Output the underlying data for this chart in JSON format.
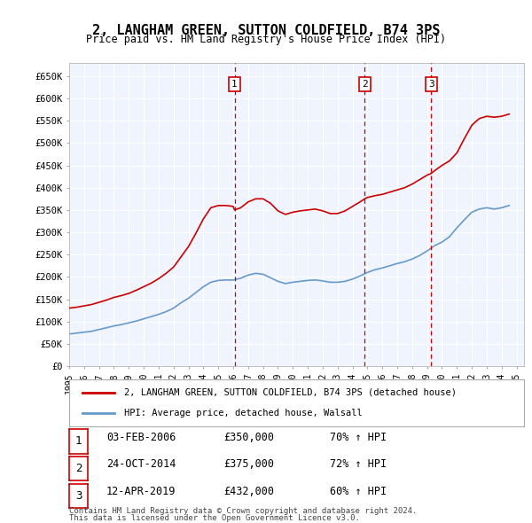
{
  "title": "2, LANGHAM GREEN, SUTTON COLDFIELD, B74 3PS",
  "subtitle": "Price paid vs. HM Land Registry's House Price Index (HPI)",
  "ylabel_ticks": [
    "£0",
    "£50K",
    "£100K",
    "£150K",
    "£200K",
    "£250K",
    "£300K",
    "£350K",
    "£400K",
    "£450K",
    "£500K",
    "£550K",
    "£600K",
    "£650K"
  ],
  "ytick_values": [
    0,
    50000,
    100000,
    150000,
    200000,
    250000,
    300000,
    350000,
    400000,
    450000,
    500000,
    550000,
    600000,
    650000
  ],
  "ylim": [
    0,
    680000
  ],
  "xlim_start": 1995.0,
  "xlim_end": 2025.5,
  "background_color": "#ffffff",
  "plot_background_color": "#f0f4ff",
  "grid_color": "#ffffff",
  "sale_dates": [
    2006.09,
    2014.82,
    2019.28
  ],
  "sale_labels": [
    "1",
    "2",
    "3"
  ],
  "sale_prices": [
    350000,
    375000,
    432000
  ],
  "sale_date_strs": [
    "03-FEB-2006",
    "24-OCT-2014",
    "12-APR-2019"
  ],
  "sale_price_strs": [
    "£350,000",
    "£375,000",
    "£432,000"
  ],
  "sale_hpi_strs": [
    "70% ↑ HPI",
    "72% ↑ HPI",
    "60% ↑ HPI"
  ],
  "legend_label_red": "2, LANGHAM GREEN, SUTTON COLDFIELD, B74 3PS (detached house)",
  "legend_label_blue": "HPI: Average price, detached house, Walsall",
  "footer_line1": "Contains HM Land Registry data © Crown copyright and database right 2024.",
  "footer_line2": "This data is licensed under the Open Government Licence v3.0.",
  "red_line_color": "#cc0000",
  "blue_line_color": "#6699cc",
  "vline_color": "#cc0000",
  "hpi_red_x": [
    1995.0,
    1995.5,
    1996.0,
    1996.5,
    1997.0,
    1997.5,
    1998.0,
    1998.5,
    1999.0,
    1999.5,
    2000.0,
    2000.5,
    2001.0,
    2001.5,
    2002.0,
    2002.5,
    2003.0,
    2003.5,
    2004.0,
    2004.5,
    2005.0,
    2005.5,
    2006.0,
    2006.09,
    2006.5,
    2007.0,
    2007.5,
    2008.0,
    2008.5,
    2009.0,
    2009.5,
    2010.0,
    2010.5,
    2011.0,
    2011.5,
    2012.0,
    2012.5,
    2013.0,
    2013.5,
    2014.0,
    2014.5,
    2014.82,
    2015.0,
    2015.5,
    2016.0,
    2016.5,
    2017.0,
    2017.5,
    2018.0,
    2018.5,
    2019.0,
    2019.28,
    2019.5,
    2020.0,
    2020.5,
    2021.0,
    2021.5,
    2022.0,
    2022.5,
    2023.0,
    2023.5,
    2024.0,
    2024.5
  ],
  "hpi_red_y": [
    130000,
    132000,
    135000,
    138000,
    143000,
    148000,
    154000,
    158000,
    163000,
    170000,
    178000,
    186000,
    196000,
    208000,
    222000,
    245000,
    268000,
    298000,
    330000,
    355000,
    360000,
    360000,
    358000,
    350000,
    355000,
    368000,
    375000,
    375000,
    365000,
    348000,
    340000,
    345000,
    348000,
    350000,
    352000,
    348000,
    342000,
    342000,
    348000,
    358000,
    368000,
    375000,
    378000,
    382000,
    385000,
    390000,
    395000,
    400000,
    408000,
    418000,
    428000,
    432000,
    438000,
    450000,
    460000,
    478000,
    510000,
    540000,
    555000,
    560000,
    558000,
    560000,
    565000
  ],
  "hpi_blue_x": [
    1995.0,
    1995.5,
    1996.0,
    1996.5,
    1997.0,
    1997.5,
    1998.0,
    1998.5,
    1999.0,
    1999.5,
    2000.0,
    2000.5,
    2001.0,
    2001.5,
    2002.0,
    2002.5,
    2003.0,
    2003.5,
    2004.0,
    2004.5,
    2005.0,
    2005.5,
    2006.0,
    2006.5,
    2007.0,
    2007.5,
    2008.0,
    2008.5,
    2009.0,
    2009.5,
    2010.0,
    2010.5,
    2011.0,
    2011.5,
    2012.0,
    2012.5,
    2013.0,
    2013.5,
    2014.0,
    2014.5,
    2015.0,
    2015.5,
    2016.0,
    2016.5,
    2017.0,
    2017.5,
    2018.0,
    2018.5,
    2019.0,
    2019.5,
    2020.0,
    2020.5,
    2021.0,
    2021.5,
    2022.0,
    2022.5,
    2023.0,
    2023.5,
    2024.0,
    2024.5
  ],
  "hpi_blue_y": [
    72000,
    74000,
    76000,
    78000,
    82000,
    86000,
    90000,
    93000,
    97000,
    101000,
    106000,
    111000,
    116000,
    122000,
    130000,
    142000,
    152000,
    165000,
    178000,
    188000,
    192000,
    193000,
    193000,
    197000,
    204000,
    208000,
    206000,
    198000,
    190000,
    185000,
    188000,
    190000,
    192000,
    193000,
    191000,
    188000,
    188000,
    190000,
    195000,
    202000,
    210000,
    216000,
    220000,
    225000,
    230000,
    234000,
    240000,
    248000,
    258000,
    270000,
    278000,
    290000,
    310000,
    328000,
    345000,
    352000,
    355000,
    352000,
    355000,
    360000
  ]
}
